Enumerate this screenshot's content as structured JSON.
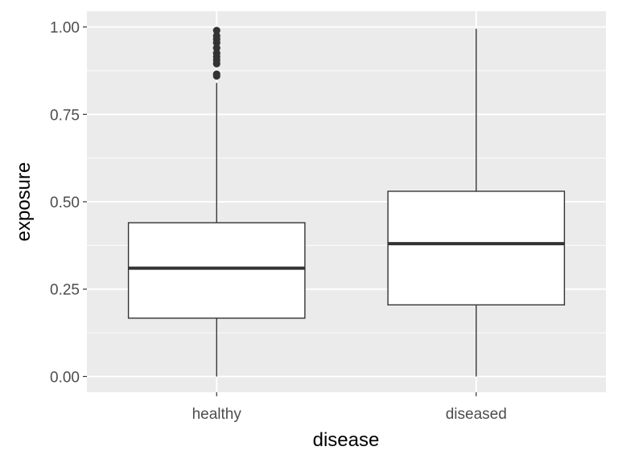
{
  "chart_data": {
    "type": "boxplot",
    "xlabel": "disease",
    "ylabel": "exposure",
    "ylim": [
      -0.045,
      1.045
    ],
    "y_ticks": [
      {
        "value": 0.0,
        "label": "0.00"
      },
      {
        "value": 0.25,
        "label": "0.25"
      },
      {
        "value": 0.5,
        "label": "0.50"
      },
      {
        "value": 0.75,
        "label": "0.75"
      },
      {
        "value": 1.0,
        "label": "1.00"
      }
    ],
    "y_minor_ticks": [
      0.125,
      0.375,
      0.625,
      0.875
    ],
    "grid": true,
    "colors": {
      "panel": "#ebebeb",
      "grid": "#ffffff",
      "box_fill": "#ffffff",
      "box_line": "#333333",
      "tick_text": "#4d4d4d",
      "title_text": "#000000"
    },
    "categories": [
      "healthy",
      "diseased"
    ],
    "boxes": [
      {
        "category": "healthy",
        "min": 0.0,
        "q1": 0.167,
        "median": 0.31,
        "q3": 0.44,
        "max": 0.84,
        "outliers": [
          0.86,
          0.865,
          0.895,
          0.905,
          0.915,
          0.925,
          0.94,
          0.955,
          0.965,
          0.975,
          0.99
        ]
      },
      {
        "category": "diseased",
        "min": 0.0,
        "q1": 0.205,
        "median": 0.38,
        "q3": 0.53,
        "max": 0.995,
        "outliers": []
      }
    ]
  }
}
